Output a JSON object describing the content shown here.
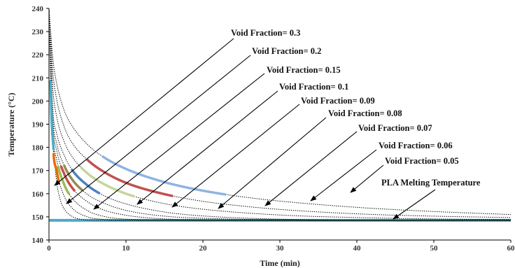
{
  "chart_data": {
    "type": "line",
    "xlabel": "Time (min)",
    "ylabel": "Temperature (°C)",
    "xlim": [
      0,
      60
    ],
    "ylim": [
      140,
      240
    ],
    "x_ticks": [
      "0",
      "10",
      "20",
      "30",
      "40",
      "50",
      "60"
    ],
    "y_ticks": [
      "140",
      "150",
      "160",
      "170",
      "180",
      "190",
      "200",
      "210",
      "220",
      "230",
      "240"
    ],
    "grid": false,
    "melting_temperature": 148.5,
    "colors": {
      "melting_line": "#4bacc6",
      "curve": "#000000",
      "highlight_0.3": "#8eb4e3",
      "highlight_0.2": "#c0504d",
      "highlight_0.15": "#c3d69b",
      "highlight_0.1": "#4f81bd",
      "highlight_0.09": "#948a54",
      "highlight_0.08": "#c0504d",
      "highlight_0.07": "#9bbb59",
      "highlight_0.06": "#e46c0a",
      "highlight_0.05": "#4bacc6"
    },
    "series": [
      {
        "name": "Void Fraction= 0.3",
        "x": [
          0,
          0.5,
          1,
          2,
          3,
          5,
          7,
          10,
          15,
          20,
          25,
          30,
          40,
          50,
          60
        ],
        "y": [
          240,
          218.5,
          207.6,
          195.8,
          189.3,
          181.2,
          176.0,
          170.7,
          165.0,
          161.3,
          158.7,
          156.8,
          154.1,
          152.3,
          151.0
        ]
      },
      {
        "name": "Void Fraction= 0.2",
        "x": [
          0,
          0.5,
          1,
          2,
          3,
          5,
          7,
          10,
          15,
          20,
          25,
          30,
          40,
          50,
          60
        ],
        "y": [
          240,
          212.7,
          200.7,
          188.7,
          182.0,
          174.6,
          169.7,
          164.7,
          159.8,
          156.7,
          154.7,
          153.2,
          151.3,
          150.3,
          149.7
        ]
      },
      {
        "name": "Void Fraction= 0.15",
        "x": [
          0,
          0.5,
          1,
          2,
          3,
          5,
          7,
          10,
          15,
          20,
          30,
          40,
          50,
          60
        ],
        "y": [
          240,
          205.4,
          193.3,
          182.3,
          176.0,
          168.8,
          164.4,
          160.0,
          155.7,
          153.3,
          150.8,
          149.7,
          149.1,
          148.8
        ]
      },
      {
        "name": "Void Fraction= 0.1",
        "x": [
          0,
          0.5,
          1,
          2,
          3,
          5,
          7,
          10,
          15,
          20,
          30,
          40,
          60
        ],
        "y": [
          240,
          196.4,
          186.1,
          176.4,
          170.3,
          163.6,
          159.4,
          155.6,
          152.1,
          150.4,
          149.0,
          148.6,
          148.5
        ]
      },
      {
        "name": "Void Fraction= 0.09",
        "x": [
          0,
          0.5,
          1,
          2,
          3,
          5,
          7,
          10,
          15,
          20,
          30,
          40,
          60
        ],
        "y": [
          240,
          193.0,
          181.9,
          172.0,
          166.2,
          159.7,
          156.1,
          152.8,
          150.3,
          149.4,
          148.7,
          148.5,
          148.5
        ]
      },
      {
        "name": "Void Fraction= 0.08",
        "x": [
          0,
          0.5,
          1,
          2,
          3,
          5,
          7,
          10,
          15,
          20,
          30,
          40,
          60
        ],
        "y": [
          240,
          190.5,
          178.7,
          168.4,
          162.6,
          156.5,
          153.1,
          150.7,
          149.1,
          148.7,
          148.5,
          148.5,
          148.5
        ]
      },
      {
        "name": "Void Fraction= 0.07",
        "x": [
          0,
          0.5,
          1,
          2,
          3,
          5,
          7,
          10,
          15,
          20,
          30,
          60
        ],
        "y": [
          240,
          187.3,
          174.8,
          163.8,
          158.1,
          152.7,
          150.3,
          149.0,
          148.6,
          148.5,
          148.5,
          148.5
        ]
      },
      {
        "name": "Void Fraction= 0.06",
        "x": [
          0,
          0.5,
          1,
          2,
          3,
          5,
          7,
          10,
          15,
          20,
          30,
          60
        ],
        "y": [
          240,
          182.6,
          169.8,
          158.8,
          153.8,
          150.0,
          148.9,
          148.5,
          148.5,
          148.5,
          148.5,
          148.5
        ]
      },
      {
        "name": "Void Fraction= 0.05",
        "x": [
          0,
          0.3,
          0.6,
          1,
          1.5,
          2,
          3,
          4,
          5,
          7,
          10,
          20,
          30,
          60
        ],
        "y": [
          240,
          195.7,
          179.0,
          165.0,
          157.0,
          153.3,
          150.2,
          149.0,
          148.6,
          148.5,
          148.5,
          148.5,
          148.5,
          148.5
        ]
      }
    ],
    "highlight_segments": [
      {
        "series": "Void Fraction= 0.3",
        "x_range": [
          7,
          23
        ]
      },
      {
        "series": "Void Fraction= 0.2",
        "x_range": [
          5,
          16
        ]
      },
      {
        "series": "Void Fraction= 0.15",
        "x_range": [
          4.2,
          11
        ]
      },
      {
        "series": "Void Fraction= 0.1",
        "x_range": [
          3,
          6.5
        ]
      },
      {
        "series": "Void Fraction= 0.09",
        "x_range": [
          2,
          4.3
        ]
      },
      {
        "series": "Void Fraction= 0.08",
        "x_range": [
          1.6,
          3.3
        ]
      },
      {
        "series": "Void Fraction= 0.07",
        "x_range": [
          1.2,
          2.6
        ]
      },
      {
        "series": "Void Fraction= 0.06",
        "x_range": [
          0.6,
          1.3
        ]
      },
      {
        "series": "Void Fraction= 0.05",
        "x_range": [
          0.2,
          0.6
        ]
      }
    ],
    "annotations": [
      {
        "label": "Void Fraction= 0.3",
        "target": [
          0.5,
          162.5
        ]
      },
      {
        "label": "Void Fraction= 0.2",
        "target": [
          2,
          155
        ]
      },
      {
        "label": "Void Fraction= 0.15",
        "target": [
          5.6,
          153.2
        ]
      },
      {
        "label": "Void Fraction= 0.1",
        "target": [
          11.4,
          154.8
        ]
      },
      {
        "label": "Void Fraction= 0.09",
        "target": [
          16,
          154.2
        ]
      },
      {
        "label": "Void Fraction= 0.08",
        "target": [
          22,
          153.5
        ]
      },
      {
        "label": "Void Fraction= 0.07",
        "target": [
          28,
          154.4
        ]
      },
      {
        "label": "Void Fraction= 0.06",
        "target": [
          34,
          156.1
        ]
      },
      {
        "label": "Void Fraction= 0.05",
        "target": [
          39,
          160.4
        ]
      },
      {
        "label": "PLA Melting Temperature",
        "target": [
          44.5,
          149
        ]
      }
    ]
  }
}
